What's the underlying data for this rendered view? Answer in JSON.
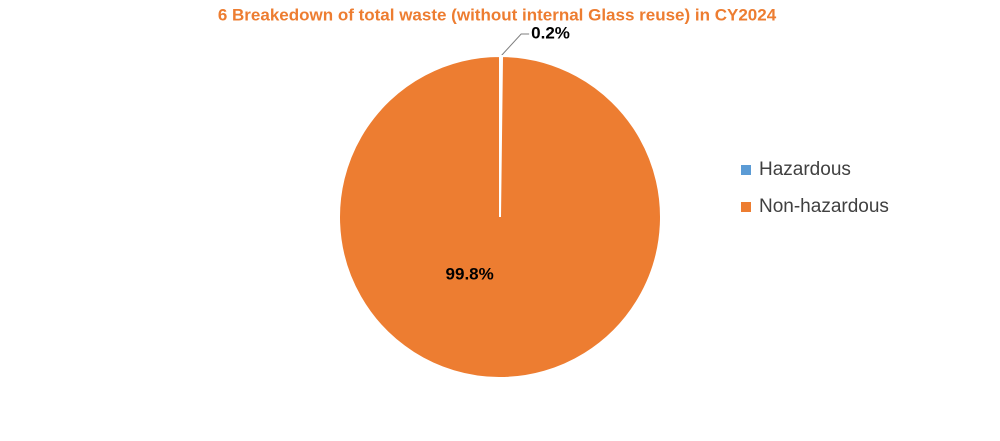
{
  "chart_data": {
    "type": "pie",
    "title": "6 Breakedown of total waste (without internal Glass reuse) in CY2024",
    "categories": [
      "Hazardous",
      "Non-hazardous"
    ],
    "values": [
      0.2,
      99.8
    ],
    "value_labels": [
      "0.2%",
      "99.8%"
    ],
    "colors": [
      "#5b9bd5",
      "#ed7d31"
    ],
    "legend": "right"
  }
}
